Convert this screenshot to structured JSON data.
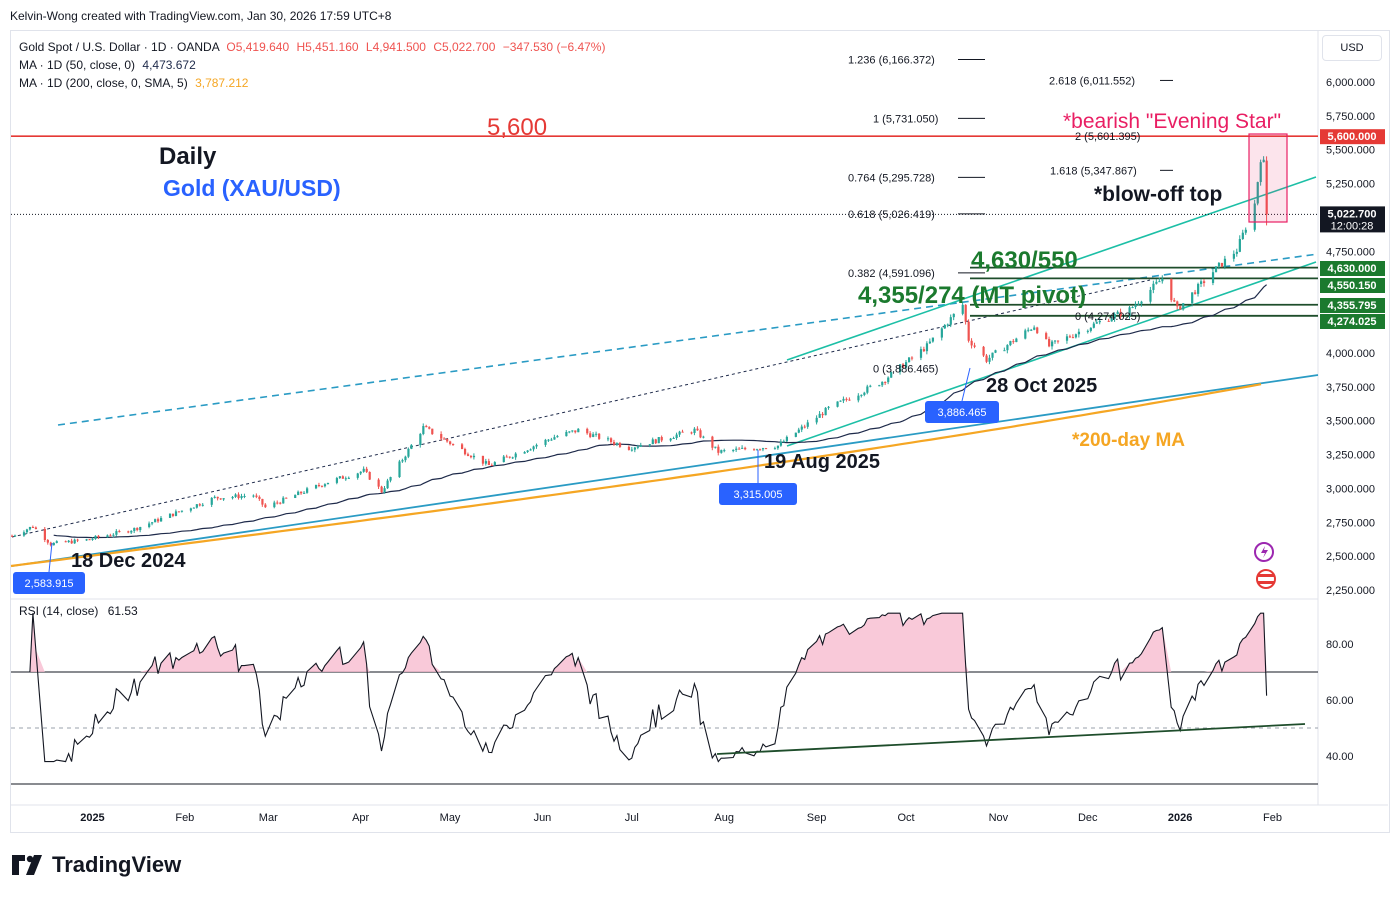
{
  "header": "Kelvin-Wong created with TradingView.com, Jan 30, 2026 17:59 UTC+8",
  "legend": {
    "symbol_line": "Gold Spot / U.S. Dollar · 1D · OANDA",
    "ohlc": [
      {
        "label": "O",
        "value": "5,419.640"
      },
      {
        "label": "H",
        "value": "5,451.160"
      },
      {
        "label": "L",
        "value": "4,941.500"
      },
      {
        "label": "C",
        "value": "5,022.700"
      }
    ],
    "change": "−347.530 (−6.47%)",
    "ma50_label": "MA · 1D (50, close, 0)",
    "ma50_value": "4,473.672",
    "ma200_label": "MA · 1D (200, close, 0, SMA, 5)",
    "ma200_value": "3,787.212",
    "rsi_label": "RSI (14, close)",
    "rsi_value": "61.53"
  },
  "currency_button": "USD",
  "brand": "TradingView",
  "colors": {
    "up": "#26a69a",
    "down": "#ef5350",
    "ma50": "#1e2a4a",
    "ma200": "#f5a623",
    "channel": "#1cbfa6",
    "trend": "#2a9bc4",
    "resistance": "#e53935",
    "support_label": "#1b7a2e",
    "annotation_red": "#e91e63",
    "title_blue": "#2962ff",
    "rsi_line": "#131722",
    "rsi_fill": "#f8bbd0"
  },
  "chart_data": [
    {
      "type": "candlestick",
      "title": "Gold Spot / U.S. Dollar · 1D · OANDA",
      "subtitle": "Daily",
      "instrument": "Gold (XAU/USD)",
      "x_axis_ticks": [
        "2025",
        "Feb",
        "Mar",
        "Apr",
        "May",
        "Jun",
        "Jul",
        "Aug",
        "Sep",
        "Oct",
        "Nov",
        "Dec",
        "2026",
        "Feb"
      ],
      "y_axis_ticks": [
        2250,
        2500,
        2750,
        3000,
        3250,
        3500,
        3750,
        4000,
        4250,
        4500,
        4750,
        5000,
        5250,
        5500,
        5750,
        6000
      ],
      "y_axis_tick_labels": [
        "2,250.000",
        "2,500.000",
        "2,750.000",
        "3,000.000",
        "3,250.000",
        "3,500.000",
        "3,750.000",
        "4,000.000",
        "4,250.000",
        "4,500.000",
        "4,750.000",
        "5,000.000",
        "5,250.000",
        "5,500.000",
        "5,750.000",
        "6,000.000"
      ],
      "ylim": [
        2200,
        6250
      ],
      "ohlc_key_points": [
        {
          "date": "2024-12-18",
          "close": 2583.915,
          "label": "18 Dec 2024"
        },
        {
          "date": "2025-04-22",
          "close": 3450
        },
        {
          "date": "2025-08-19",
          "close": 3315.005,
          "label": "19 Aug 2025"
        },
        {
          "date": "2025-10-20",
          "close": 4355
        },
        {
          "date": "2025-10-28",
          "close": 3886.465,
          "label": "28 Oct 2025"
        },
        {
          "date": "2025-12-26",
          "close": 4550
        },
        {
          "date": "2026-01-28",
          "close": 5450
        },
        {
          "date": "2026-01-30",
          "open": 5419.64,
          "high": 5451.16,
          "low": 4941.5,
          "close": 5022.7
        }
      ],
      "moving_averages": [
        {
          "name": "MA 50",
          "last": 4473.672
        },
        {
          "name": "MA 200 (SMA)",
          "last": 3787.212
        }
      ],
      "price_tags": [
        {
          "value": "5,600.000",
          "color": "#e53935"
        },
        {
          "value": "5,022.700",
          "sub": "12:00:28",
          "color": "#131722"
        },
        {
          "value": "4,630.000",
          "color": "#1b7a2e"
        },
        {
          "value": "4,550.150",
          "color": "#1b7a2e"
        },
        {
          "value": "4,355.795",
          "color": "#1b7a2e"
        },
        {
          "value": "4,274.025",
          "color": "#1b7a2e"
        }
      ],
      "fibonacci_levels": [
        {
          "label": "1.236 (6,166.372)",
          "price": 6166.372
        },
        {
          "label": "2.618 (6,011.552)",
          "price": 6011.552
        },
        {
          "label": "1 (5,731.050)",
          "price": 5731.05
        },
        {
          "label": "2 (5,601.395)",
          "price": 5601.395
        },
        {
          "label": "1.618 (5,347.867)",
          "price": 5347.867
        },
        {
          "label": "0.764 (5,295.728)",
          "price": 5295.728
        },
        {
          "label": "0.618 (5,026.419)",
          "price": 5026.419
        },
        {
          "label": "0.382 (4,591.096)",
          "price": 4591.096
        },
        {
          "label": "0 (4,274.025)",
          "price": 4274.025
        },
        {
          "label": "0 (3,886.465)",
          "price": 3886.465
        }
      ],
      "annotations": [
        {
          "text": "5,600",
          "color": "#e53935"
        },
        {
          "text": "Daily"
        },
        {
          "text": "Gold (XAU/USD)",
          "color": "#2962ff"
        },
        {
          "text": "*bearish \"Evening Star\"",
          "color": "#e91e63"
        },
        {
          "text": "*blow-off top"
        },
        {
          "text": "4,630/550",
          "color": "#1b7a2e"
        },
        {
          "text": "4,355/274 (MT pivot)",
          "color": "#1b7a2e"
        },
        {
          "text": "28 Oct 2025"
        },
        {
          "text": "19 Aug 2025"
        },
        {
          "text": "18 Dec 2024"
        },
        {
          "text": "*200-day MA",
          "color": "#f5a623"
        }
      ],
      "low_markers": [
        {
          "value": "2,583.915"
        },
        {
          "value": "3,315.005"
        },
        {
          "value": "3,886.465"
        }
      ]
    },
    {
      "type": "line",
      "title": "RSI (14, close)",
      "last": 61.53,
      "levels": [
        70,
        50,
        30
      ],
      "y_axis_ticks": [
        40,
        60,
        80
      ],
      "y_axis_tick_labels": [
        "40.00",
        "60.00",
        "80.00"
      ],
      "ylim": [
        28,
        92
      ]
    }
  ]
}
